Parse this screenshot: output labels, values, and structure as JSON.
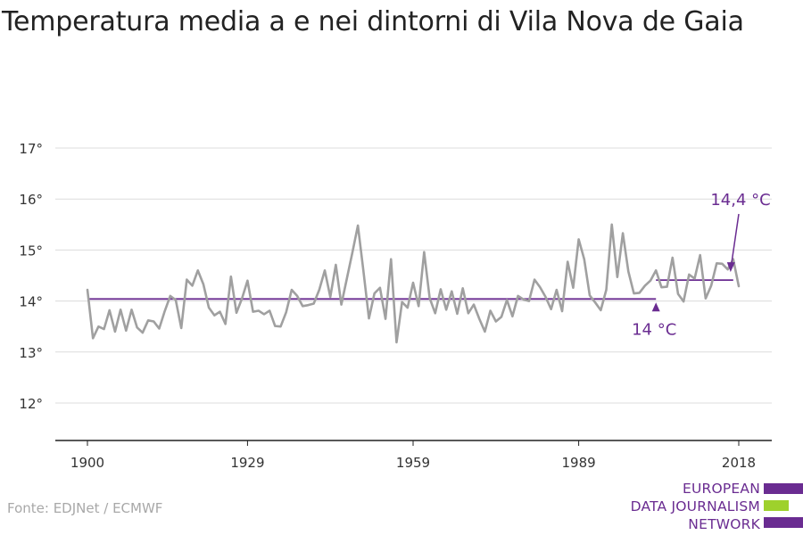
{
  "title": "Temperatura media a e nei dintorni di Vila Nova de Gaia",
  "source": "Fonte: EDJNet / ECMWF",
  "logo": {
    "lines": [
      "EUROPEAN",
      "DATA JOURNALISM",
      "NETWORK"
    ],
    "colors": [
      "#6a2c91",
      "#9ed12c",
      "#6a2c91"
    ]
  },
  "chart_data": {
    "type": "line",
    "title": "Temperatura media a e nei dintorni di Vila Nova de Gaia",
    "xlabel": "",
    "ylabel": "",
    "xlim": [
      1900,
      2018
    ],
    "ylim": [
      12,
      17
    ],
    "y_ticks": [
      12,
      13,
      14,
      15,
      16,
      17
    ],
    "y_tick_labels": [
      "12°",
      "13°",
      "14°",
      "15°",
      "16°",
      "17°"
    ],
    "x_ticks": [
      1900,
      1929,
      1959,
      1989,
      2018
    ],
    "x_tick_labels": [
      "1900",
      "1929",
      "1959",
      "1989",
      "2018"
    ],
    "grid": true,
    "series": [
      {
        "color": "#a0a0a0",
        "x_start": 1900,
        "values": [
          14.22,
          13.27,
          13.5,
          13.45,
          13.82,
          13.4,
          13.83,
          13.42,
          13.83,
          13.48,
          13.38,
          13.62,
          13.6,
          13.46,
          13.8,
          14.1,
          14.02,
          13.47,
          14.42,
          14.3,
          14.6,
          14.33,
          13.87,
          13.72,
          13.79,
          13.55,
          14.48,
          13.77,
          14.05,
          14.4,
          13.79,
          13.81,
          13.74,
          13.81,
          13.51,
          13.5,
          13.78,
          14.22,
          14.1,
          13.9,
          13.92,
          13.95,
          14.22,
          14.6,
          14.08,
          14.71,
          13.93,
          14.44,
          14.95,
          15.48,
          14.59,
          13.66,
          14.15,
          14.26,
          13.65,
          14.82,
          13.19,
          13.98,
          13.87,
          14.36,
          13.9,
          14.96,
          14.06,
          13.76,
          14.23,
          13.83,
          14.19,
          13.75,
          14.25,
          13.76,
          13.93,
          13.65,
          13.4,
          13.81,
          13.6,
          13.69,
          14.02,
          13.7,
          14.1,
          14.03,
          14.0,
          14.42,
          14.27,
          14.08,
          13.84,
          14.22,
          13.8,
          14.77,
          14.26,
          15.21,
          14.82,
          14.11,
          13.97,
          13.82,
          14.22,
          15.5,
          14.47,
          15.33,
          14.58,
          14.15,
          14.16,
          14.3,
          14.4,
          14.6,
          14.27,
          14.28,
          14.85,
          14.14,
          13.99,
          14.52,
          14.44,
          14.9,
          14.05,
          14.3,
          14.74,
          14.73,
          14.62,
          14.82,
          14.29
        ]
      }
    ],
    "reference_lines": [
      {
        "label": "14 °C",
        "value": 14.04,
        "x_range": [
          1900,
          2003
        ],
        "color": "#6a2c91"
      },
      {
        "label": "14,4 °C",
        "value": 14.41,
        "x_range": [
          2003,
          2017
        ],
        "color": "#6a2c91"
      }
    ],
    "annotations": [
      {
        "text": "14 °C",
        "x": 2003,
        "y": 14.04,
        "color": "#6a2c91"
      },
      {
        "text": "14,4 °C",
        "x": 2017,
        "y": 14.41,
        "color": "#6a2c91"
      }
    ]
  }
}
